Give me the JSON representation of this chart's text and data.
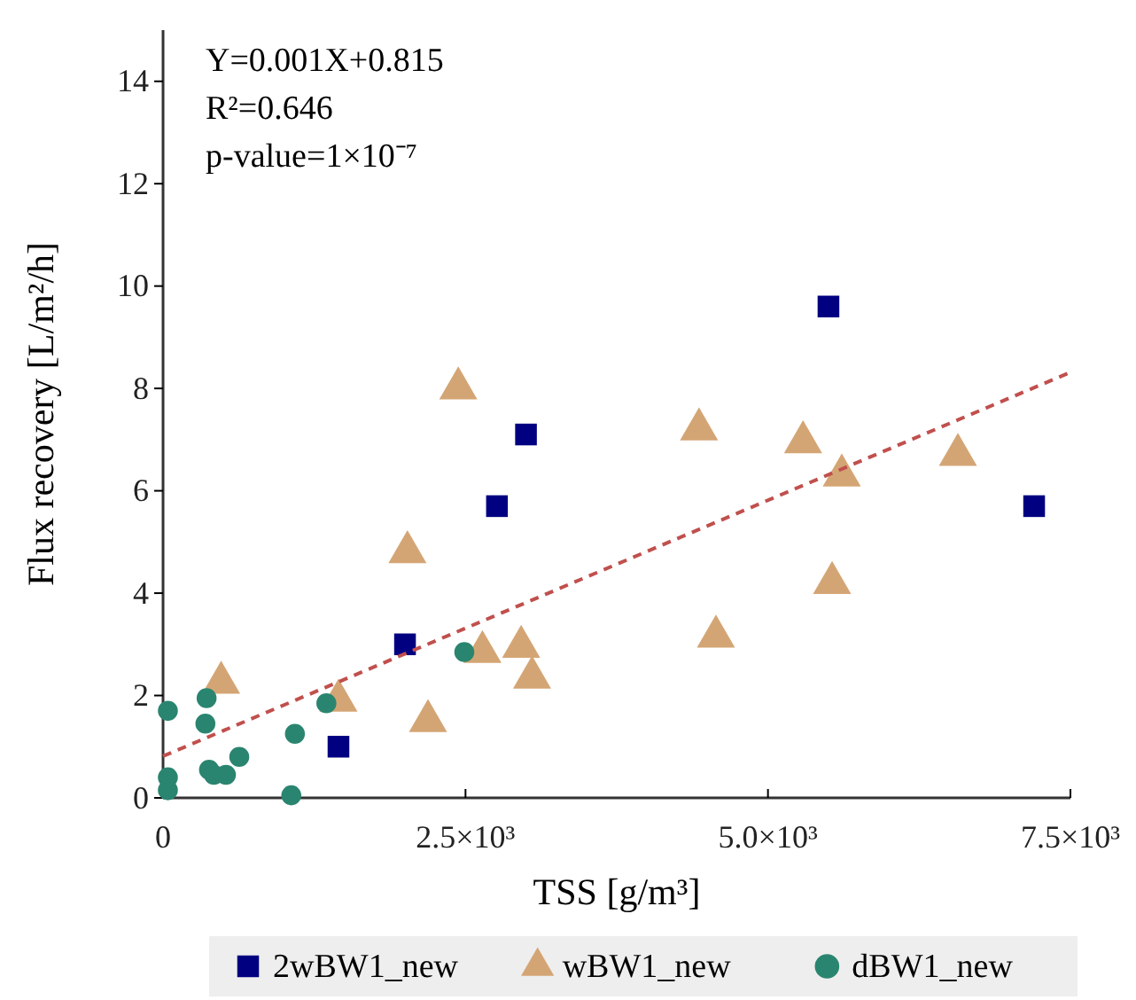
{
  "chart_data": {
    "type": "scatter",
    "xlabel": "TSS [g/m³]",
    "ylabel": "Flux recovery [L/m²/h]",
    "annotations": [
      "Y=0.001X+0.815",
      "R²=0.646",
      "p-value=1×10⁻⁷"
    ],
    "xlim": [
      0,
      7500
    ],
    "ylim": [
      0,
      15
    ],
    "xticks": [
      0,
      {
        "value": 2500,
        "label": "2.5×10³"
      },
      {
        "value": 5000,
        "label": "5.0×10³"
      },
      {
        "value": 7500,
        "label": "7.5×10³"
      }
    ],
    "yticks": [
      0,
      2,
      4,
      6,
      8,
      10,
      12,
      14
    ],
    "grid": false,
    "legend": "bottom",
    "series": [
      {
        "name": "2wBW1_new",
        "color": "#000080",
        "marker": "square",
        "x": [
          1450,
          2000,
          2760,
          3000,
          5500,
          7200
        ],
        "values": [
          1.0,
          3.0,
          5.7,
          7.1,
          9.6,
          5.7
        ]
      },
      {
        "name": "wBW1_new",
        "color": "#d4a574",
        "marker": "triangle",
        "x": [
          480,
          1450,
          2020,
          2190,
          2640,
          2960,
          3050,
          2440,
          4430,
          5290,
          5610,
          6570,
          5530,
          4570
        ],
        "values": [
          2.25,
          1.9,
          4.8,
          1.5,
          2.85,
          2.95,
          2.35,
          8.0,
          7.2,
          6.95,
          6.3,
          6.7,
          4.2,
          3.15
        ]
      },
      {
        "name": "dBW1_new",
        "color": "#2a8570",
        "marker": "circle",
        "x": [
          40,
          40,
          40,
          360,
          350,
          380,
          420,
          520,
          630,
          1090,
          1060,
          1350,
          2490
        ],
        "values": [
          1.7,
          0.4,
          0.15,
          1.95,
          1.45,
          0.55,
          0.45,
          0.45,
          0.8,
          1.25,
          0.05,
          1.85,
          2.85
        ]
      },
      {
        "type": "line",
        "color": "#c0504d",
        "marker": "none",
        "line_style": "dashed",
        "x": [
          0,
          7500
        ],
        "values": [
          0.815,
          8.315
        ]
      }
    ]
  }
}
